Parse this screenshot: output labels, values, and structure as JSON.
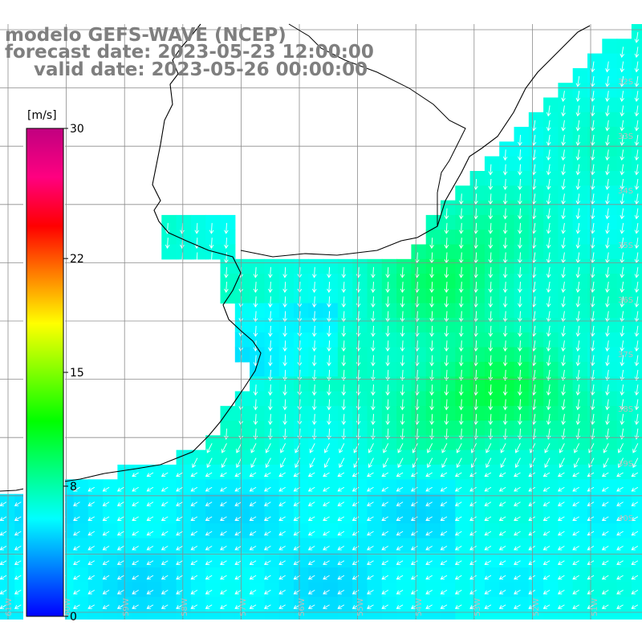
{
  "title": {
    "line1": "modelo GEFS-WAVE (NCEP)",
    "line2": "forecast date: 2023-05-23 12:00:00",
    "line3": "valid date: 2023-05-26 00:00:00"
  },
  "colorbar": {
    "unit": "[m/s]",
    "ticks": [
      "30",
      "22",
      "15",
      "8",
      "0"
    ],
    "tick_values": [
      30,
      22,
      15,
      8,
      0
    ],
    "range": [
      0,
      30
    ],
    "stops": [
      "#0000ff",
      "#0080ff",
      "#00ffff",
      "#00ff80",
      "#00ff00",
      "#80ff00",
      "#ffff00",
      "#ff8000",
      "#ff0000",
      "#ff0080",
      "#c00080"
    ]
  },
  "map": {
    "land_color": "#ffffff",
    "coast_color": "#000000",
    "grid_color": "#8c8c8c",
    "arrow_color": "#ffffff",
    "lat_labels": [
      "32S",
      "33S",
      "34S",
      "35S",
      "36S",
      "37S",
      "38S",
      "39S",
      "40S"
    ],
    "lon_labels": [
      "61W",
      "60W",
      "59W",
      "58W",
      "57W",
      "56W",
      "55W",
      "54W",
      "53W",
      "52W",
      "51W"
    ]
  }
}
